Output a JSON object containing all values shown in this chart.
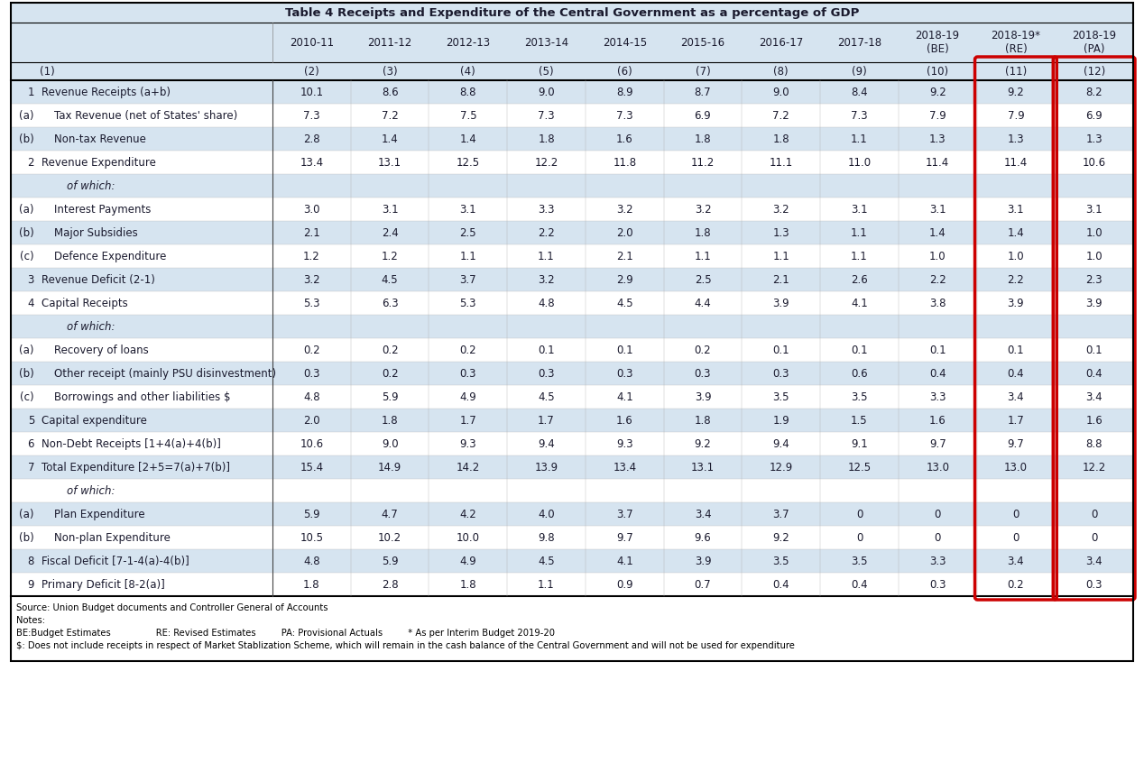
{
  "title": "Table 4 Receipts and Expenditure of the Central Government as a percentage of GDP",
  "year_labels": [
    "2010-11",
    "2011-12",
    "2012-13",
    "2013-14",
    "2014-15",
    "2015-16",
    "2016-17",
    "2017-18",
    "2018-19\n(BE)",
    "2018-19*\n(RE)",
    "2018-19\n(PA)"
  ],
  "sub_labels": [
    "(1)",
    "(2)",
    "(3)",
    "(4)",
    "(5)",
    "(6)",
    "(7)",
    "(8)",
    "(9)",
    "(10)",
    "(11)",
    "(12)"
  ],
  "rows": [
    {
      "num": "1",
      "label": "Revenue Receipts (a+b)",
      "indent": 0,
      "bold": false,
      "italic": false,
      "values": [
        "10.1",
        "8.6",
        "8.8",
        "9.0",
        "8.9",
        "8.7",
        "9.0",
        "8.4",
        "9.2",
        "9.2",
        "8.2"
      ],
      "bg": "light"
    },
    {
      "num": "(a)",
      "label": "Tax Revenue (net of States' share)",
      "indent": 1,
      "bold": false,
      "italic": false,
      "values": [
        "7.3",
        "7.2",
        "7.5",
        "7.3",
        "7.3",
        "6.9",
        "7.2",
        "7.3",
        "7.9",
        "7.9",
        "6.9"
      ],
      "bg": "white"
    },
    {
      "num": "(b)",
      "label": "Non-tax Revenue",
      "indent": 1,
      "bold": false,
      "italic": false,
      "values": [
        "2.8",
        "1.4",
        "1.4",
        "1.8",
        "1.6",
        "1.8",
        "1.8",
        "1.1",
        "1.3",
        "1.3",
        "1.3"
      ],
      "bg": "light"
    },
    {
      "num": "2",
      "label": "Revenue Expenditure",
      "indent": 0,
      "bold": false,
      "italic": false,
      "values": [
        "13.4",
        "13.1",
        "12.5",
        "12.2",
        "11.8",
        "11.2",
        "11.1",
        "11.0",
        "11.4",
        "11.4",
        "10.6"
      ],
      "bg": "white"
    },
    {
      "num": "",
      "label": "of which:",
      "indent": 2,
      "bold": false,
      "italic": true,
      "values": [
        "",
        "",
        "",
        "",
        "",
        "",
        "",
        "",
        "",
        "",
        ""
      ],
      "bg": "light"
    },
    {
      "num": "(a)",
      "label": "Interest Payments",
      "indent": 1,
      "bold": false,
      "italic": false,
      "values": [
        "3.0",
        "3.1",
        "3.1",
        "3.3",
        "3.2",
        "3.2",
        "3.2",
        "3.1",
        "3.1",
        "3.1",
        "3.1"
      ],
      "bg": "white"
    },
    {
      "num": "(b)",
      "label": "Major Subsidies",
      "indent": 1,
      "bold": false,
      "italic": false,
      "values": [
        "2.1",
        "2.4",
        "2.5",
        "2.2",
        "2.0",
        "1.8",
        "1.3",
        "1.1",
        "1.4",
        "1.4",
        "1.0"
      ],
      "bg": "light"
    },
    {
      "num": "(c)",
      "label": "Defence Expenditure",
      "indent": 1,
      "bold": false,
      "italic": false,
      "values": [
        "1.2",
        "1.2",
        "1.1",
        "1.1",
        "2.1",
        "1.1",
        "1.1",
        "1.1",
        "1.0",
        "1.0",
        "1.0"
      ],
      "bg": "white"
    },
    {
      "num": "3",
      "label": "Revenue Deficit (2-1)",
      "indent": 0,
      "bold": false,
      "italic": false,
      "values": [
        "3.2",
        "4.5",
        "3.7",
        "3.2",
        "2.9",
        "2.5",
        "2.1",
        "2.6",
        "2.2",
        "2.2",
        "2.3"
      ],
      "bg": "light"
    },
    {
      "num": "4",
      "label": "Capital Receipts",
      "indent": 0,
      "bold": false,
      "italic": false,
      "values": [
        "5.3",
        "6.3",
        "5.3",
        "4.8",
        "4.5",
        "4.4",
        "3.9",
        "4.1",
        "3.8",
        "3.9",
        "3.9"
      ],
      "bg": "white"
    },
    {
      "num": "",
      "label": "of which:",
      "indent": 2,
      "bold": false,
      "italic": true,
      "values": [
        "",
        "",
        "",
        "",
        "",
        "",
        "",
        "",
        "",
        "",
        ""
      ],
      "bg": "light"
    },
    {
      "num": "(a)",
      "label": "Recovery of loans",
      "indent": 1,
      "bold": false,
      "italic": false,
      "values": [
        "0.2",
        "0.2",
        "0.2",
        "0.1",
        "0.1",
        "0.2",
        "0.1",
        "0.1",
        "0.1",
        "0.1",
        "0.1"
      ],
      "bg": "white"
    },
    {
      "num": "(b)",
      "label": "Other receipt (mainly PSU disinvestment)",
      "indent": 1,
      "bold": false,
      "italic": false,
      "values": [
        "0.3",
        "0.2",
        "0.3",
        "0.3",
        "0.3",
        "0.3",
        "0.3",
        "0.6",
        "0.4",
        "0.4",
        "0.4"
      ],
      "bg": "light"
    },
    {
      "num": "(c)",
      "label": "Borrowings and other liabilities $",
      "indent": 1,
      "bold": false,
      "italic": false,
      "values": [
        "4.8",
        "5.9",
        "4.9",
        "4.5",
        "4.1",
        "3.9",
        "3.5",
        "3.5",
        "3.3",
        "3.4",
        "3.4"
      ],
      "bg": "white"
    },
    {
      "num": "5",
      "label": "Capital expenditure",
      "indent": 0,
      "bold": false,
      "italic": false,
      "values": [
        "2.0",
        "1.8",
        "1.7",
        "1.7",
        "1.6",
        "1.8",
        "1.9",
        "1.5",
        "1.6",
        "1.7",
        "1.6"
      ],
      "bg": "light"
    },
    {
      "num": "6",
      "label": "Non-Debt Receipts [1+4(a)+4(b)]",
      "indent": 0,
      "bold": false,
      "italic": false,
      "values": [
        "10.6",
        "9.0",
        "9.3",
        "9.4",
        "9.3",
        "9.2",
        "9.4",
        "9.1",
        "9.7",
        "9.7",
        "8.8"
      ],
      "bg": "white"
    },
    {
      "num": "7",
      "label": "Total Expenditure [2+5=7(a)+7(b)]",
      "indent": 0,
      "bold": false,
      "italic": false,
      "values": [
        "15.4",
        "14.9",
        "14.2",
        "13.9",
        "13.4",
        "13.1",
        "12.9",
        "12.5",
        "13.0",
        "13.0",
        "12.2"
      ],
      "bg": "light"
    },
    {
      "num": "",
      "label": "of which:",
      "indent": 2,
      "bold": false,
      "italic": true,
      "values": [
        "",
        "",
        "",
        "",
        "",
        "",
        "",
        "",
        "",
        "",
        ""
      ],
      "bg": "white"
    },
    {
      "num": "(a)",
      "label": "Plan Expenditure",
      "indent": 1,
      "bold": false,
      "italic": false,
      "values": [
        "5.9",
        "4.7",
        "4.2",
        "4.0",
        "3.7",
        "3.4",
        "3.7",
        "0",
        "0",
        "0",
        "0"
      ],
      "bg": "light"
    },
    {
      "num": "(b)",
      "label": "Non-plan Expenditure",
      "indent": 1,
      "bold": false,
      "italic": false,
      "values": [
        "10.5",
        "10.2",
        "10.0",
        "9.8",
        "9.7",
        "9.6",
        "9.2",
        "0",
        "0",
        "0",
        "0"
      ],
      "bg": "white"
    },
    {
      "num": "8",
      "label": "Fiscal Deficit [7-1-4(a)-4(b)]",
      "indent": 0,
      "bold": false,
      "italic": false,
      "values": [
        "4.8",
        "5.9",
        "4.9",
        "4.5",
        "4.1",
        "3.9",
        "3.5",
        "3.5",
        "3.3",
        "3.4",
        "3.4"
      ],
      "bg": "light"
    },
    {
      "num": "9",
      "label": "Primary Deficit [8-2(a)]",
      "indent": 0,
      "bold": false,
      "italic": false,
      "values": [
        "1.8",
        "2.8",
        "1.8",
        "1.1",
        "0.9",
        "0.7",
        "0.4",
        "0.4",
        "0.3",
        "0.2",
        "0.3"
      ],
      "bg": "white"
    }
  ],
  "footer_lines": [
    "Source: Union Budget documents and Controller General of Accounts",
    "Notes:",
    "BE:Budget Estimates                RE: Revised Estimates         PA: Provisional Actuals         * As per Interim Budget 2019-20",
    "$: Does not include receipts in respect of Market Stablization Scheme, which will remain in the cash balance of the Central Government and will not be used for expenditure"
  ],
  "bg_light": "#d6e4f0",
  "bg_white": "#ffffff",
  "red_color": "#cc0000",
  "text_color": "#1a1a2e",
  "header_bg": "#d6e4f0"
}
